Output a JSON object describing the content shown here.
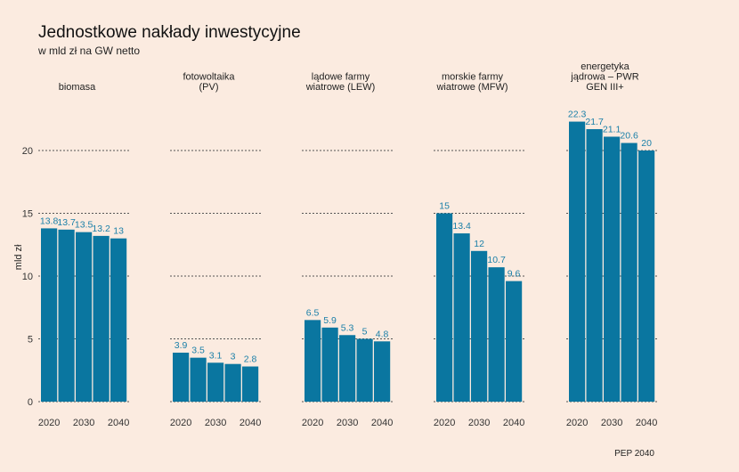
{
  "title": "Jednostkowe nakłady inwestycyjne",
  "subtitle": "w mld zł na GW netto",
  "source": "PEP 2040",
  "colors": {
    "bar": "#0a76a0",
    "label": "#1a7fa8",
    "background": "#fbebe0",
    "grid": "#555555"
  },
  "chart_data": {
    "type": "bar",
    "ylabel": "mld zł",
    "ylim": [
      0,
      23
    ],
    "yticks": [
      0,
      5,
      10,
      15,
      20
    ],
    "grid": true,
    "x": [
      2020,
      2025,
      2030,
      2035,
      2040
    ],
    "xtick_labels": [
      "2020",
      "2030",
      "2040"
    ],
    "panels": [
      {
        "title": [
          "biomasa"
        ],
        "values": [
          13.8,
          13.7,
          13.5,
          13.2,
          13.0
        ],
        "labels": [
          "13.8",
          "13.7",
          "13.5",
          "13.2",
          "13"
        ]
      },
      {
        "title": [
          "fotowoltaika",
          "(PV)"
        ],
        "values": [
          3.9,
          3.5,
          3.1,
          3.0,
          2.8
        ],
        "labels": [
          "3.9",
          "3.5",
          "3.1",
          "3",
          "2.8"
        ]
      },
      {
        "title": [
          "lądowe farmy",
          "wiatrowe (LEW)"
        ],
        "values": [
          6.5,
          5.9,
          5.3,
          5.0,
          4.8
        ],
        "labels": [
          "6.5",
          "5.9",
          "5.3",
          "5",
          "4.8"
        ]
      },
      {
        "title": [
          "morskie farmy",
          "wiatrowe (MFW)"
        ],
        "values": [
          15.0,
          13.4,
          12.0,
          10.7,
          9.6
        ],
        "labels": [
          "15",
          "13.4",
          "12",
          "10.7",
          "9.6"
        ]
      },
      {
        "title": [
          "energetyka",
          "jądrowa – PWR",
          "GEN III+"
        ],
        "values": [
          22.3,
          21.7,
          21.1,
          20.6,
          20.0
        ],
        "labels": [
          "22.3",
          "21.7",
          "21.1",
          "20.6",
          "20"
        ]
      }
    ]
  }
}
